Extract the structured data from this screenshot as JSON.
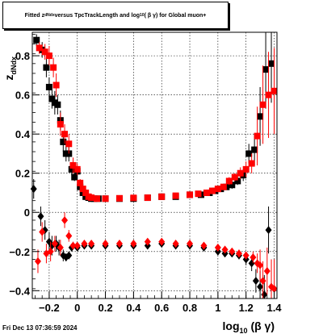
{
  "title": {
    "prefix": "Fitted  z",
    "sub1": "dNdx",
    "middle": "  versus TpcTrackLength and log",
    "sub2": "10",
    "suffix": " ( β γ) for Global muon+"
  },
  "footer": "Fri Dec 13 07:36:59 2024",
  "chart_data": {
    "type": "scatter",
    "title": "Fitted z_dNdx versus TpcTrackLength and log10(βγ) for Global muon+",
    "xlabel": "log10(β γ)",
    "ylabel": "z_dNdx",
    "xlim": [
      -0.32,
      1.42
    ],
    "ylim": [
      -0.44,
      0.92
    ],
    "x_ticks": [
      -0.2,
      0,
      0.2,
      0.4,
      0.6,
      0.8,
      1,
      1.2,
      1.4
    ],
    "x_tick_labels": [
      "−0.2",
      "0",
      "0.2",
      "0.4",
      "0.6",
      "0.8",
      "1",
      "1.2",
      "1.4"
    ],
    "y_ticks": [
      -0.4,
      -0.2,
      0,
      0.2,
      0.4,
      0.6,
      0.8
    ],
    "y_tick_labels": [
      "−0.4",
      "−0.2",
      "0",
      "0.2",
      "0.4",
      "0.6",
      "0.8"
    ],
    "grid": true,
    "series": [
      {
        "color": "#000000",
        "marker": "square",
        "x": [
          -0.29,
          -0.25,
          -0.22,
          -0.2,
          -0.18,
          -0.16,
          -0.14,
          -0.12,
          -0.1,
          -0.08,
          -0.06,
          -0.04,
          -0.02,
          0.0,
          0.02,
          0.04,
          0.06,
          0.08,
          0.1,
          0.12,
          0.15,
          0.2,
          0.3,
          0.4,
          0.5,
          0.6,
          0.7,
          0.8,
          0.88,
          0.94,
          0.98,
          1.02,
          1.06,
          1.1,
          1.14,
          1.18,
          1.22,
          1.26,
          1.3,
          1.34,
          1.38
        ],
        "y": [
          0.88,
          0.83,
          0.74,
          0.64,
          0.58,
          0.56,
          0.55,
          0.47,
          0.36,
          0.3,
          0.3,
          0.22,
          0.18,
          0.21,
          0.13,
          0.1,
          0.08,
          0.075,
          0.07,
          0.07,
          0.07,
          0.07,
          0.07,
          0.07,
          0.075,
          0.08,
          0.08,
          0.09,
          0.09,
          0.1,
          0.11,
          0.12,
          0.13,
          0.14,
          0.16,
          0.19,
          0.3,
          0.32,
          0.49,
          0.73,
          0.76
        ],
        "yerr": [
          0.03,
          0.04,
          0.05,
          0.05,
          0.05,
          0.06,
          0.05,
          0.05,
          0.05,
          0.04,
          0.04,
          0.03,
          0.02,
          0.02,
          0.01,
          0.01,
          0.01,
          0.01,
          0.005,
          0.005,
          0.005,
          0.005,
          0.005,
          0.005,
          0.005,
          0.005,
          0.005,
          0.005,
          0.005,
          0.005,
          0.01,
          0.01,
          0.01,
          0.02,
          0.02,
          0.03,
          0.05,
          0.08,
          0.15,
          0.2,
          0.2
        ]
      },
      {
        "color": "#ff0000",
        "marker": "square",
        "x": [
          -0.27,
          -0.23,
          -0.2,
          -0.17,
          -0.15,
          -0.12,
          -0.09,
          -0.06,
          -0.03,
          0.0,
          0.02,
          0.04,
          0.06,
          0.08,
          0.1,
          0.14,
          0.2,
          0.3,
          0.4,
          0.5,
          0.6,
          0.7,
          0.8,
          0.86,
          0.92,
          0.96,
          1.0,
          1.04,
          1.08,
          1.12,
          1.16,
          1.2,
          1.24,
          1.28,
          1.32,
          1.36,
          1.4
        ],
        "y": [
          0.84,
          0.82,
          0.8,
          0.74,
          0.65,
          0.45,
          0.4,
          0.35,
          0.24,
          0.22,
          0.15,
          0.12,
          0.1,
          0.08,
          0.075,
          0.07,
          0.07,
          0.072,
          0.074,
          0.075,
          0.08,
          0.085,
          0.09,
          0.095,
          0.1,
          0.11,
          0.12,
          0.13,
          0.16,
          0.18,
          0.2,
          0.22,
          0.25,
          0.39,
          0.55,
          0.6,
          0.62
        ],
        "yerr": [
          0.03,
          0.04,
          0.05,
          0.05,
          0.06,
          0.06,
          0.05,
          0.05,
          0.04,
          0.03,
          0.02,
          0.01,
          0.01,
          0.01,
          0.005,
          0.005,
          0.005,
          0.005,
          0.005,
          0.005,
          0.005,
          0.005,
          0.005,
          0.005,
          0.005,
          0.01,
          0.01,
          0.01,
          0.02,
          0.02,
          0.03,
          0.04,
          0.05,
          0.15,
          0.2,
          0.22,
          0.22
        ]
      },
      {
        "color": "#000000",
        "marker": "diamond",
        "x": [
          -0.31,
          -0.26,
          -0.23,
          -0.2,
          -0.18,
          -0.15,
          -0.13,
          -0.1,
          -0.08,
          -0.06,
          -0.04,
          0.0,
          0.05,
          0.1,
          0.2,
          0.3,
          0.4,
          0.5,
          0.6,
          0.7,
          0.8,
          0.9,
          1.0,
          1.05,
          1.1,
          1.15,
          1.2,
          1.24,
          1.27,
          1.3,
          1.33,
          1.36
        ],
        "y": [
          0.12,
          -0.02,
          -0.09,
          -0.15,
          -0.17,
          -0.16,
          -0.18,
          -0.22,
          -0.23,
          -0.22,
          -0.18,
          -0.18,
          -0.17,
          -0.17,
          -0.17,
          -0.17,
          -0.17,
          -0.17,
          -0.16,
          -0.17,
          -0.17,
          -0.18,
          -0.2,
          -0.21,
          -0.21,
          -0.22,
          -0.24,
          -0.26,
          -0.35,
          -0.38,
          -0.42,
          -0.09
        ],
        "yerr": [
          0.05,
          0.05,
          0.05,
          0.05,
          0.05,
          0.04,
          0.04,
          0.03,
          0.02,
          0.02,
          0.02,
          0.01,
          0.01,
          0.01,
          0.005,
          0.005,
          0.005,
          0.005,
          0.005,
          0.005,
          0.005,
          0.005,
          0.01,
          0.01,
          0.01,
          0.02,
          0.03,
          0.04,
          0.06,
          0.08,
          0.1,
          0.12
        ]
      },
      {
        "color": "#ff0000",
        "marker": "diamond",
        "x": [
          -0.28,
          -0.25,
          -0.22,
          -0.19,
          -0.16,
          -0.12,
          -0.09,
          -0.06,
          -0.03,
          0.0,
          0.05,
          0.1,
          0.2,
          0.3,
          0.4,
          0.5,
          0.6,
          0.7,
          0.8,
          0.9,
          1.0,
          1.05,
          1.1,
          1.15,
          1.2,
          1.25,
          1.28,
          1.3,
          1.32,
          1.35,
          1.38,
          1.4
        ],
        "y": [
          -0.25,
          -0.1,
          -0.21,
          -0.2,
          -0.16,
          -0.18,
          -0.04,
          -0.12,
          -0.17,
          -0.17,
          -0.16,
          -0.16,
          -0.16,
          -0.16,
          -0.16,
          -0.15,
          -0.15,
          -0.16,
          -0.16,
          -0.17,
          -0.18,
          -0.19,
          -0.2,
          -0.21,
          -0.22,
          -0.23,
          -0.26,
          -0.27,
          -0.35,
          -0.3,
          -0.38,
          -0.39
        ],
        "yerr": [
          0.06,
          0.05,
          0.05,
          0.05,
          0.04,
          0.04,
          0.04,
          0.03,
          0.02,
          0.01,
          0.01,
          0.01,
          0.005,
          0.005,
          0.005,
          0.005,
          0.005,
          0.005,
          0.005,
          0.005,
          0.01,
          0.01,
          0.01,
          0.02,
          0.02,
          0.03,
          0.05,
          0.08,
          0.1,
          0.12,
          0.14,
          0.15
        ]
      }
    ]
  }
}
